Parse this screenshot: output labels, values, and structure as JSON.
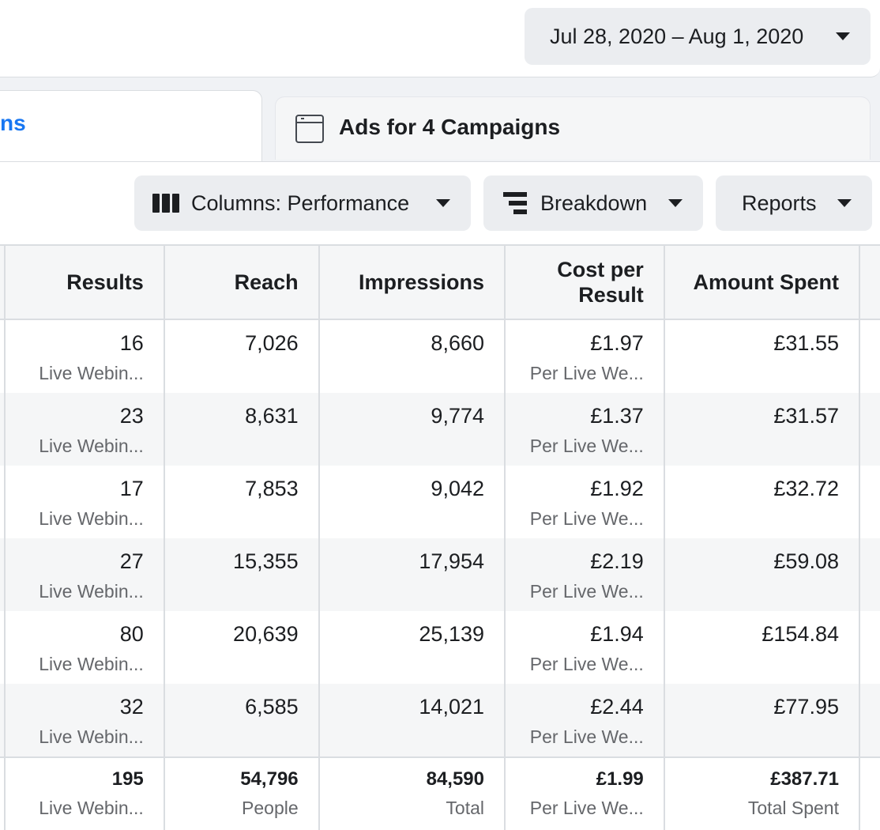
{
  "date_range": {
    "label": "Jul 28, 2020 – Aug 1, 2020"
  },
  "tabs": {
    "active_label_fragment": "ns",
    "ads_label": "Ads for 4 Campaigns"
  },
  "toolbar": {
    "columns_label": "Columns: Performance",
    "breakdown_label": "Breakdown",
    "reports_label": "Reports"
  },
  "table": {
    "headers": {
      "results": "Results",
      "reach": "Reach",
      "impressions": "Impressions",
      "cost_per_result_line1": "Cost per",
      "cost_per_result_line2": "Result",
      "amount_spent": "Amount Spent"
    },
    "rows": [
      {
        "results": "16",
        "results_sub": "Live Webin...",
        "reach": "7,026",
        "impressions": "8,660",
        "cost": "£1.97",
        "cost_sub": "Per Live We...",
        "spent": "£31.55"
      },
      {
        "results": "23",
        "results_sub": "Live Webin...",
        "reach": "8,631",
        "impressions": "9,774",
        "cost": "£1.37",
        "cost_sub": "Per Live We...",
        "spent": "£31.57"
      },
      {
        "results": "17",
        "results_sub": "Live Webin...",
        "reach": "7,853",
        "impressions": "9,042",
        "cost": "£1.92",
        "cost_sub": "Per Live We...",
        "spent": "£32.72"
      },
      {
        "results": "27",
        "results_sub": "Live Webin...",
        "reach": "15,355",
        "impressions": "17,954",
        "cost": "£2.19",
        "cost_sub": "Per Live We...",
        "spent": "£59.08"
      },
      {
        "results": "80",
        "results_sub": "Live Webin...",
        "reach": "20,639",
        "impressions": "25,139",
        "cost": "£1.94",
        "cost_sub": "Per Live We...",
        "spent": "£154.84"
      },
      {
        "results": "32",
        "results_sub": "Live Webin...",
        "reach": "6,585",
        "impressions": "14,021",
        "cost": "£2.44",
        "cost_sub": "Per Live We...",
        "spent": "£77.95"
      }
    ],
    "totals": {
      "results": "195",
      "results_sub": "Live Webin...",
      "reach": "54,796",
      "reach_sub": "People",
      "impressions": "84,590",
      "impressions_sub": "Total",
      "cost": "£1.99",
      "cost_sub": "Per Live We...",
      "spent": "£387.71",
      "spent_sub": "Total Spent"
    }
  }
}
